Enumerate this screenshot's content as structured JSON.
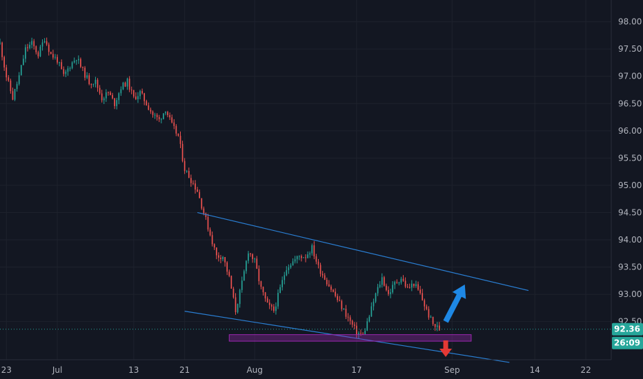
{
  "colors": {
    "background": "#131722",
    "grid": "#1e222d",
    "up": "#26a69a",
    "down": "#ef5350",
    "trendline": "#2a7fd4",
    "support_zone": "#9c27b0",
    "arrow_up": "#1e88e5",
    "arrow_down": "#e53935",
    "badge": "#26a69a",
    "axis_text": "#b2b5be"
  },
  "chart_data": {
    "type": "candlestick",
    "title": "",
    "xlabel": "",
    "ylabel": "",
    "grid": true,
    "x_range": [
      "2020-06-22",
      "2020-09-26"
    ],
    "y_range": [
      91.8,
      98.4
    ],
    "x_ticks": [
      {
        "date": "2020-06-23",
        "label": "23"
      },
      {
        "date": "2020-07-01",
        "label": "Jul"
      },
      {
        "date": "2020-07-13",
        "label": "13"
      },
      {
        "date": "2020-07-21",
        "label": "21"
      },
      {
        "date": "2020-08-01",
        "label": "Aug"
      },
      {
        "date": "2020-08-17",
        "label": "17"
      },
      {
        "date": "2020-09-01",
        "label": "Sep"
      },
      {
        "date": "2020-09-14",
        "label": "14"
      },
      {
        "date": "2020-09-22",
        "label": "22"
      }
    ],
    "y_ticks": [
      "98.00",
      "97.50",
      "97.00",
      "96.50",
      "96.00",
      "95.50",
      "95.00",
      "94.50",
      "94.00",
      "93.50",
      "93.00",
      "92.50"
    ],
    "price_path": [
      [
        "2020-06-22",
        97.6
      ],
      [
        "2020-06-23",
        97.0
      ],
      [
        "2020-06-24",
        96.6
      ],
      [
        "2020-06-25",
        97.0
      ],
      [
        "2020-06-26",
        97.5
      ],
      [
        "2020-06-27",
        97.6
      ],
      [
        "2020-06-28",
        97.4
      ],
      [
        "2020-06-29",
        97.7
      ],
      [
        "2020-06-30",
        97.4
      ],
      [
        "2020-07-01",
        97.3
      ],
      [
        "2020-07-02",
        97.0
      ],
      [
        "2020-07-03",
        97.2
      ],
      [
        "2020-07-04",
        97.35
      ],
      [
        "2020-07-05",
        97.1
      ],
      [
        "2020-07-06",
        96.9
      ],
      [
        "2020-07-07",
        96.9
      ],
      [
        "2020-07-08",
        96.6
      ],
      [
        "2020-07-09",
        96.7
      ],
      [
        "2020-07-10",
        96.5
      ],
      [
        "2020-07-11",
        96.8
      ],
      [
        "2020-07-12",
        96.9
      ],
      [
        "2020-07-13",
        96.6
      ],
      [
        "2020-07-14",
        96.7
      ],
      [
        "2020-07-15",
        96.5
      ],
      [
        "2020-07-16",
        96.3
      ],
      [
        "2020-07-17",
        96.2
      ],
      [
        "2020-07-18",
        96.4
      ],
      [
        "2020-07-19",
        96.1
      ],
      [
        "2020-07-20",
        95.9
      ],
      [
        "2020-07-21",
        95.3
      ],
      [
        "2020-07-22",
        95.1
      ],
      [
        "2020-07-23",
        94.9
      ],
      [
        "2020-07-24",
        94.5
      ],
      [
        "2020-07-25",
        94.1
      ],
      [
        "2020-07-26",
        93.7
      ],
      [
        "2020-07-27",
        93.7
      ],
      [
        "2020-07-28",
        93.3
      ],
      [
        "2020-07-29",
        92.7
      ],
      [
        "2020-07-30",
        93.2
      ],
      [
        "2020-07-31",
        93.8
      ],
      [
        "2020-08-01",
        93.6
      ],
      [
        "2020-08-02",
        93.1
      ],
      [
        "2020-08-03",
        92.8
      ],
      [
        "2020-08-04",
        92.7
      ],
      [
        "2020-08-05",
        93.1
      ],
      [
        "2020-08-06",
        93.5
      ],
      [
        "2020-08-07",
        93.6
      ],
      [
        "2020-08-08",
        93.7
      ],
      [
        "2020-08-09",
        93.7
      ],
      [
        "2020-08-10",
        93.85
      ],
      [
        "2020-08-11",
        93.5
      ],
      [
        "2020-08-12",
        93.3
      ],
      [
        "2020-08-13",
        93.1
      ],
      [
        "2020-08-14",
        92.9
      ],
      [
        "2020-08-15",
        92.7
      ],
      [
        "2020-08-16",
        92.5
      ],
      [
        "2020-08-17",
        92.3
      ],
      [
        "2020-08-18",
        92.25
      ],
      [
        "2020-08-19",
        92.6
      ],
      [
        "2020-08-20",
        93.0
      ],
      [
        "2020-08-21",
        93.3
      ],
      [
        "2020-08-22",
        93.0
      ],
      [
        "2020-08-23",
        93.2
      ],
      [
        "2020-08-24",
        93.3
      ],
      [
        "2020-08-25",
        93.1
      ],
      [
        "2020-08-26",
        93.2
      ],
      [
        "2020-08-27",
        93.0
      ],
      [
        "2020-08-28",
        92.7
      ],
      [
        "2020-08-29",
        92.45
      ],
      [
        "2020-08-30",
        92.36
      ]
    ],
    "candles_per_day": 3,
    "last_price": "92.36",
    "countdown": "26:09",
    "annotations": {
      "upper_trendline": [
        [
          "2020-07-23",
          94.5
        ],
        [
          "2020-09-13",
          93.07
        ]
      ],
      "lower_trendline": [
        [
          "2020-07-21",
          92.69
        ],
        [
          "2020-09-10",
          91.75
        ]
      ],
      "support_zone": {
        "x0": "2020-07-28",
        "x1": "2020-09-04",
        "y_low": 92.14,
        "y_high": 92.26
      },
      "breakout_arrow_up": [
        [
          "2020-08-31",
          92.5
        ],
        [
          "2020-09-03",
          93.18
        ]
      ],
      "breakdown_arrow_down": {
        "date": "2020-08-31",
        "price": 91.85
      }
    }
  }
}
